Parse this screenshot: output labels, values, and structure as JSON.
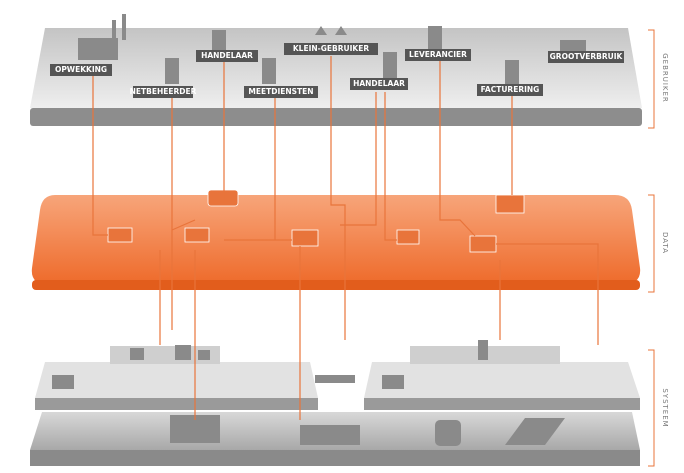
{
  "layers": {
    "gebruiker": "GEBRUIKER",
    "data": "DATA",
    "systeem": "SYSTEEM"
  },
  "roles": [
    "OPWEKKING",
    "NETBEHEERDER",
    "HANDELAAR",
    "MEETDIENSTEN",
    "KLEIN-GEBRUIKER",
    "HANDELAAR",
    "LEVERANCIER",
    "FACTURERING",
    "GROOTVERBRUIK"
  ]
}
